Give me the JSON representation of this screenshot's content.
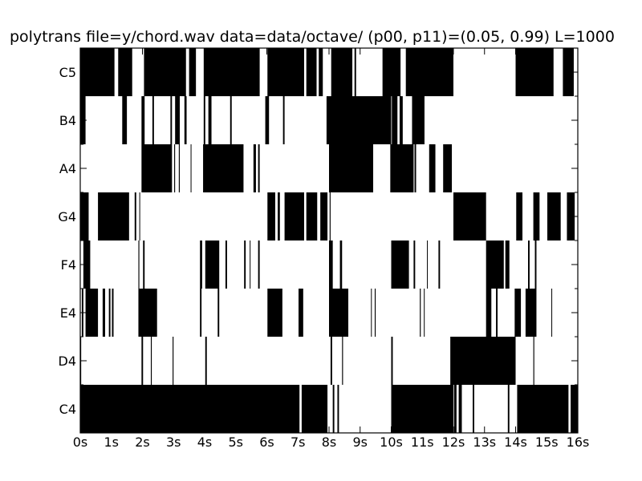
{
  "chart_data": {
    "type": "heatmap",
    "title": "polytrans file=y/chord.wav data=data/octave/ (p00, p11)=(0.05, 0.99) L=1000",
    "xlabel": "",
    "ylabel": "",
    "xlim": [
      0,
      16
    ],
    "x_ticks": [
      "0s",
      "1s",
      "2s",
      "3s",
      "4s",
      "5s",
      "6s",
      "7s",
      "8s",
      "9s",
      "10s",
      "11s",
      "12s",
      "13s",
      "14s",
      "15s",
      "16s"
    ],
    "rows": [
      "C5",
      "B4",
      "A4",
      "G4",
      "F4",
      "E4",
      "D4",
      "C4"
    ],
    "active_color": "#000000",
    "inactive_color": "#ffffff",
    "grid": false,
    "segments": {
      "C5": [
        [
          0,
          1.1
        ],
        [
          1.22,
          1.67
        ],
        [
          2.05,
          3.4
        ],
        [
          3.5,
          3.72
        ],
        [
          3.97,
          5.77
        ],
        [
          6.02,
          7.2
        ],
        [
          7.27,
          7.6
        ],
        [
          7.67,
          7.8
        ],
        [
          8.07,
          8.75
        ],
        [
          8.82,
          8.87
        ],
        [
          9.72,
          10.3
        ],
        [
          10.47,
          12.0
        ],
        [
          14.0,
          15.22
        ],
        [
          15.52,
          15.87
        ]
      ],
      "B4": [
        [
          0,
          0.17
        ],
        [
          1.35,
          1.5
        ],
        [
          1.97,
          2.07
        ],
        [
          2.32,
          2.37
        ],
        [
          2.9,
          2.95
        ],
        [
          3.05,
          3.2
        ],
        [
          3.35,
          3.42
        ],
        [
          3.97,
          4.02
        ],
        [
          4.12,
          4.22
        ],
        [
          4.82,
          4.87
        ],
        [
          5.95,
          6.07
        ],
        [
          6.52,
          6.57
        ],
        [
          7.92,
          10.0
        ],
        [
          10.02,
          10.2
        ],
        [
          10.27,
          10.37
        ],
        [
          10.67,
          11.07
        ]
      ],
      "A4": [
        [
          1.97,
          2.95
        ],
        [
          3.02,
          3.05
        ],
        [
          3.17,
          3.2
        ],
        [
          3.55,
          3.57
        ],
        [
          3.95,
          5.25
        ],
        [
          5.57,
          5.65
        ],
        [
          5.72,
          5.77
        ],
        [
          8.0,
          9.42
        ],
        [
          9.97,
          10.72
        ],
        [
          10.75,
          10.8
        ],
        [
          11.22,
          11.42
        ],
        [
          11.67,
          11.95
        ]
      ],
      "G4": [
        [
          0,
          0.27
        ],
        [
          0.57,
          1.57
        ],
        [
          1.75,
          1.8
        ],
        [
          1.9,
          1.92
        ],
        [
          6.02,
          6.27
        ],
        [
          6.35,
          6.42
        ],
        [
          6.57,
          7.2
        ],
        [
          7.27,
          7.62
        ],
        [
          7.72,
          7.95
        ],
        [
          8.02,
          8.05
        ],
        [
          12.0,
          13.05
        ],
        [
          14.02,
          14.22
        ],
        [
          14.57,
          14.77
        ],
        [
          15.02,
          15.45
        ],
        [
          15.65,
          15.9
        ]
      ],
      "F4": [
        [
          0.1,
          0.32
        ],
        [
          1.87,
          1.9
        ],
        [
          2.02,
          2.07
        ],
        [
          3.85,
          3.92
        ],
        [
          4.02,
          4.47
        ],
        [
          4.67,
          4.72
        ],
        [
          5.27,
          5.32
        ],
        [
          5.45,
          5.47
        ],
        [
          5.72,
          5.77
        ],
        [
          8.0,
          8.12
        ],
        [
          8.35,
          8.42
        ],
        [
          10.0,
          10.57
        ],
        [
          10.72,
          10.77
        ],
        [
          11.15,
          11.17
        ],
        [
          11.52,
          11.57
        ],
        [
          13.05,
          13.62
        ],
        [
          13.67,
          13.8
        ],
        [
          14.4,
          14.45
        ],
        [
          14.62,
          14.67
        ]
      ],
      "E4": [
        [
          0.05,
          0.1
        ],
        [
          0.17,
          0.57
        ],
        [
          0.72,
          0.8
        ],
        [
          0.92,
          0.97
        ],
        [
          1.02,
          1.07
        ],
        [
          0.25,
          0.5
        ],
        [
          1.87,
          2.47
        ],
        [
          3.85,
          3.9
        ],
        [
          4.42,
          4.47
        ],
        [
          6.02,
          6.5
        ],
        [
          7.02,
          7.17
        ],
        [
          8.0,
          8.62
        ],
        [
          9.35,
          9.37
        ],
        [
          9.47,
          9.5
        ],
        [
          10.92,
          10.95
        ],
        [
          11.05,
          11.07
        ],
        [
          13.05,
          13.22
        ],
        [
          13.37,
          13.42
        ],
        [
          13.97,
          14.17
        ],
        [
          14.32,
          14.67
        ],
        [
          15.15,
          15.17
        ]
      ],
      "D4": [
        [
          0,
          0.03
        ],
        [
          1.97,
          2.02
        ],
        [
          2.27,
          2.3
        ],
        [
          2.97,
          3.0
        ],
        [
          4.02,
          4.07
        ],
        [
          8.05,
          8.1
        ],
        [
          8.42,
          8.45
        ],
        [
          10.0,
          10.05
        ],
        [
          11.9,
          14.0
        ],
        [
          14.57,
          14.6
        ]
      ],
      "C4": [
        [
          0,
          7.05
        ],
        [
          7.12,
          7.95
        ],
        [
          8.12,
          8.17
        ],
        [
          8.27,
          8.32
        ],
        [
          10.0,
          12.0
        ],
        [
          12.02,
          12.1
        ],
        [
          12.17,
          12.27
        ],
        [
          12.62,
          12.67
        ],
        [
          13.75,
          13.8
        ],
        [
          14.05,
          15.7
        ],
        [
          15.77,
          16.0
        ]
      ]
    }
  }
}
